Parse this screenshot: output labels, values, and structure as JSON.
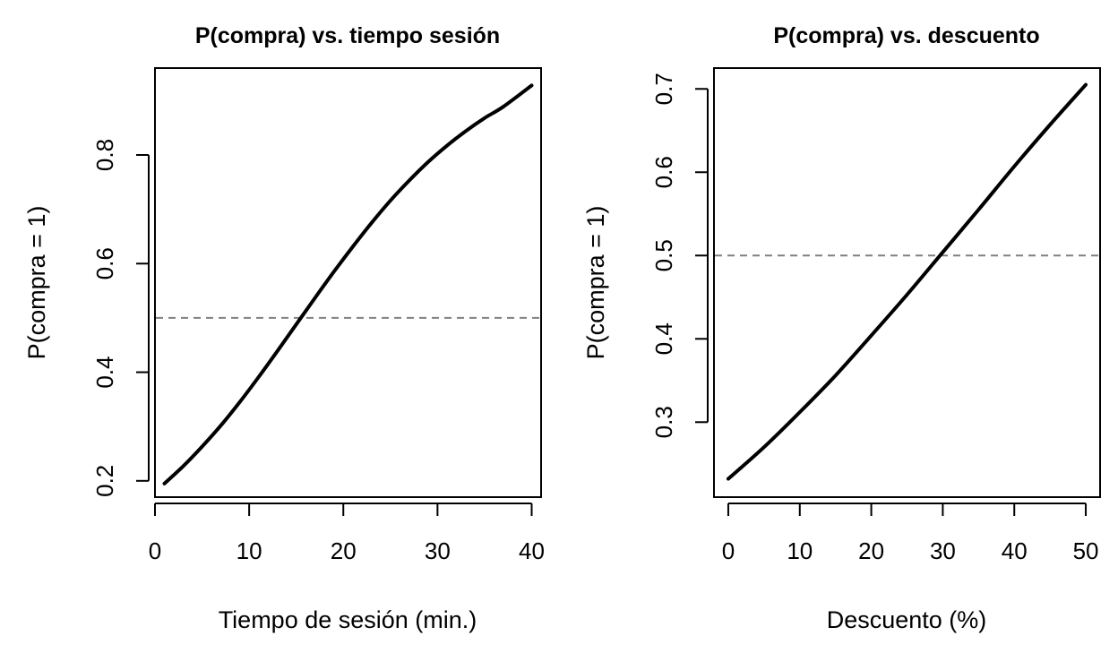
{
  "chart_data": [
    {
      "type": "line",
      "title": "P(compra) vs. tiempo sesión",
      "xlabel": "Tiempo de sesión (min.)",
      "ylabel": "P(compra = 1)",
      "xlim": [
        0,
        41
      ],
      "ylim": [
        0.17,
        0.96
      ],
      "xticks": [
        0,
        10,
        20,
        30,
        40
      ],
      "xtick_labels": [
        "0",
        "10",
        "20",
        "30",
        "40"
      ],
      "yticks": [
        0.2,
        0.4,
        0.6,
        0.8
      ],
      "ytick_labels": [
        "0.2",
        "0.4",
        "0.6",
        "0.8"
      ],
      "reference_line": {
        "y": 0.5,
        "style": "dashed",
        "color": "#808080"
      },
      "series": [
        {
          "color": "#000000",
          "x": [
            1,
            3,
            5,
            7,
            9,
            11,
            13,
            15,
            17,
            19,
            21,
            23,
            25,
            27,
            29,
            31,
            33,
            35,
            37,
            40
          ],
          "y": [
            0.195,
            0.227,
            0.263,
            0.302,
            0.345,
            0.391,
            0.439,
            0.488,
            0.537,
            0.585,
            0.631,
            0.675,
            0.716,
            0.753,
            0.787,
            0.817,
            0.844,
            0.868,
            0.889,
            0.928
          ]
        }
      ]
    },
    {
      "type": "line",
      "title": "P(compra) vs. descuento",
      "xlabel": "Descuento (%)",
      "ylabel": "P(compra = 1)",
      "xlim": [
        -2,
        52
      ],
      "ylim": [
        0.21,
        0.725
      ],
      "xticks": [
        0,
        10,
        20,
        30,
        40,
        50
      ],
      "xtick_labels": [
        "0",
        "10",
        "20",
        "30",
        "40",
        "50"
      ],
      "yticks": [
        0.3,
        0.4,
        0.5,
        0.6,
        0.7
      ],
      "ytick_labels": [
        "0.3",
        "0.4",
        "0.5",
        "0.6",
        "0.7"
      ],
      "reference_line": {
        "y": 0.5,
        "style": "dashed",
        "color": "#808080"
      },
      "series": [
        {
          "color": "#000000",
          "x": [
            0,
            5,
            10,
            15,
            20,
            25,
            30,
            35,
            40,
            45,
            50
          ],
          "y": [
            0.232,
            0.27,
            0.312,
            0.356,
            0.404,
            0.453,
            0.504,
            0.555,
            0.607,
            0.657,
            0.705
          ]
        }
      ]
    }
  ]
}
